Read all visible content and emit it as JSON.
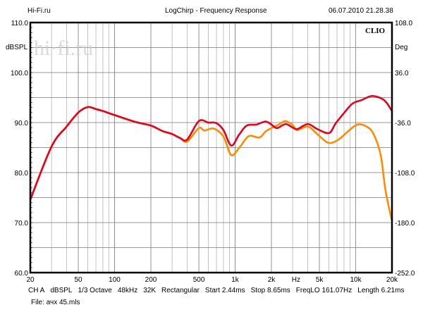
{
  "header": {
    "left": "Hi-Fi.ru",
    "title": "LogChirp - Frequency Response",
    "datetime": "06.07.2010 21.28.38"
  },
  "watermark": "hi-fi.ru",
  "brand": "CLIO",
  "footer": {
    "params": [
      "CH A",
      "dBSPL",
      "1/3 Octave",
      "48kHz",
      "32K",
      "Rectangular",
      "Start 2.44ms",
      "Stop 8.65ms",
      "FreqLO 161.07Hz",
      "Length 6.21ms"
    ],
    "file": "File: ачх 45.mls"
  },
  "chart_data": {
    "type": "line",
    "title": "LogChirp - Frequency Response",
    "xlabel": "Hz",
    "ylabel": "dBSPL",
    "y2label": "Deg",
    "xscale": "log",
    "xlim": [
      20,
      20000
    ],
    "ylim": [
      60,
      110
    ],
    "y2lim": [
      -252,
      108
    ],
    "grid": true,
    "x_ticks": [
      {
        "v": 20,
        "label": "20"
      },
      {
        "v": 50,
        "label": "50"
      },
      {
        "v": 100,
        "label": "100"
      },
      {
        "v": 200,
        "label": "200"
      },
      {
        "v": 500,
        "label": "500"
      },
      {
        "v": 1000,
        "label": "1k"
      },
      {
        "v": 2000,
        "label": "2k"
      },
      {
        "v": 5000,
        "label": "5k"
      },
      {
        "v": 10000,
        "label": "10k"
      },
      {
        "v": 20000,
        "label": "20k"
      }
    ],
    "x_unit_label": "Hz",
    "y_ticks": [
      {
        "v": 110,
        "label": "110.0"
      },
      {
        "v": 100,
        "label": "100.0"
      },
      {
        "v": 90,
        "label": "90.0"
      },
      {
        "v": 80,
        "label": "80.0"
      },
      {
        "v": 70,
        "label": "70.0"
      },
      {
        "v": 60,
        "label": "60.0"
      }
    ],
    "y2_ticks": [
      {
        "v": 110,
        "label": "108.0"
      },
      {
        "v": 100,
        "label": "36.0"
      },
      {
        "v": 90,
        "label": "-36.0"
      },
      {
        "v": 80,
        "label": "-108.0"
      },
      {
        "v": 70,
        "label": "-180.0"
      },
      {
        "v": 60,
        "label": "-252.0"
      }
    ],
    "series": [
      {
        "name": "red",
        "color": "#e8001c",
        "x": [
          20,
          30,
          40,
          50,
          60,
          70,
          80,
          100,
          150,
          200,
          250,
          300,
          350,
          400,
          500,
          600,
          697,
          800,
          929,
          1080,
          1248,
          1500,
          1787,
          2000,
          2228,
          2619,
          3000,
          3281,
          4010,
          4800,
          6010,
          6800,
          7870,
          9410,
          11220,
          13480,
          16120,
          18000,
          20000
        ],
        "y": [
          74.6,
          85.2,
          89.2,
          92.0,
          93.1,
          92.7,
          92.3,
          91.5,
          90.1,
          89.4,
          88.3,
          87.7,
          86.9,
          86.6,
          90.3,
          90.0,
          89.9,
          88.5,
          85.4,
          87.6,
          89.4,
          89.6,
          90.2,
          89.6,
          88.9,
          89.7,
          89.0,
          88.7,
          89.7,
          88.7,
          87.9,
          89.8,
          91.7,
          93.8,
          94.5,
          95.3,
          94.9,
          94.0,
          92.3
        ]
      },
      {
        "name": "orange",
        "color": "#ff8c00",
        "x": [
          20,
          30,
          40,
          50,
          60,
          70,
          80,
          100,
          150,
          200,
          250,
          300,
          350,
          400,
          500,
          556,
          662,
          800,
          929,
          1100,
          1300,
          1590,
          1787,
          2000,
          2300,
          2619,
          3000,
          3281,
          4010,
          4800,
          5740,
          6450,
          7400,
          8600,
          10300,
          12300,
          14090,
          16120,
          17660,
          19800,
          20000
        ],
        "y": [
          74.6,
          85.2,
          89.2,
          92.0,
          93.1,
          92.7,
          92.3,
          91.5,
          90.1,
          89.4,
          88.3,
          87.7,
          86.9,
          86.2,
          88.9,
          88.4,
          88.8,
          87.2,
          83.5,
          85.2,
          87.3,
          87.0,
          88.2,
          88.9,
          89.6,
          90.3,
          89.5,
          88.5,
          89.2,
          87.7,
          86.1,
          86.0,
          86.8,
          88.2,
          89.6,
          89.2,
          87.7,
          83.5,
          76.5,
          70.8,
          70.6
        ]
      }
    ]
  }
}
